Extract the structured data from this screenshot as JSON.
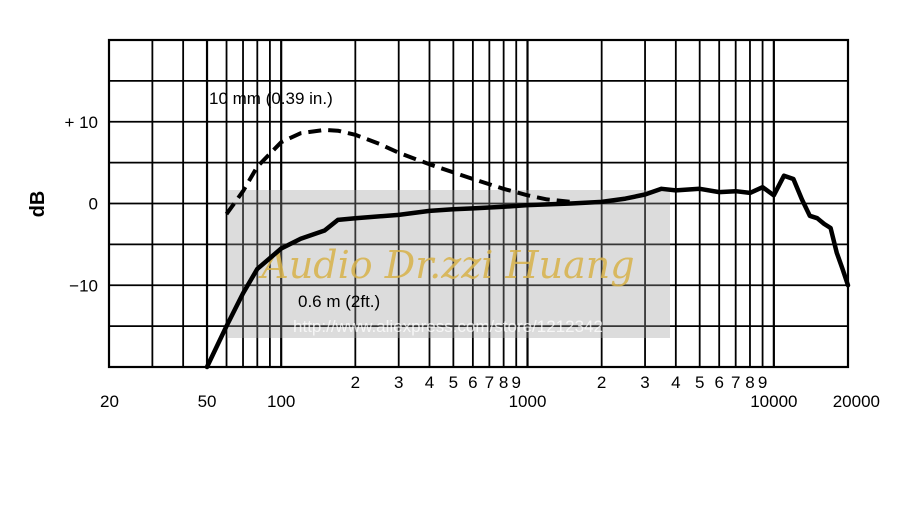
{
  "chart_data": {
    "type": "line",
    "ylabel": "dB",
    "xscale": "log",
    "xlim": [
      20,
      20000
    ],
    "ylim": [
      -20,
      20
    ],
    "grid": true,
    "x_major_ticks": [
      20,
      50,
      100,
      1000,
      10000,
      20000
    ],
    "x_major_tick_labels": [
      "20",
      "50",
      "100",
      "1000",
      "10000",
      "20000"
    ],
    "x_minor_tick_labels": [
      {
        "value": 200,
        "label": "2"
      },
      {
        "value": 300,
        "label": "3"
      },
      {
        "value": 400,
        "label": "4"
      },
      {
        "value": 500,
        "label": "5"
      },
      {
        "value": 600,
        "label": "6"
      },
      {
        "value": 700,
        "label": "7"
      },
      {
        "value": 800,
        "label": "8"
      },
      {
        "value": 900,
        "label": "9"
      },
      {
        "value": 2000,
        "label": "2"
      },
      {
        "value": 3000,
        "label": "3"
      },
      {
        "value": 4000,
        "label": "4"
      },
      {
        "value": 5000,
        "label": "5"
      },
      {
        "value": 6000,
        "label": "6"
      },
      {
        "value": 7000,
        "label": "7"
      },
      {
        "value": 8000,
        "label": "8"
      },
      {
        "value": 9000,
        "label": "9"
      }
    ],
    "y_ticks": [
      10,
      0,
      -10
    ],
    "y_tick_labels": [
      "+ 10",
      "0",
      "−10"
    ],
    "annotations": [
      "10 mm (0.39 in.)",
      "0.6 m (2ft.)"
    ],
    "series": [
      {
        "label_ref": "10 mm (0.39 in.)",
        "style": "dashed",
        "x": [
          60,
          70,
          80,
          100,
          120,
          150,
          170,
          200,
          250,
          300,
          400,
          500,
          600,
          800,
          1000,
          1200,
          1500
        ],
        "y": [
          -1.3,
          1.5,
          4.5,
          7.5,
          8.6,
          9.0,
          8.9,
          8.4,
          7.3,
          6.2,
          4.8,
          3.8,
          3.0,
          1.8,
          1.0,
          0.5,
          0.2
        ]
      },
      {
        "label_ref": "0.6 m (2ft.)",
        "style": "solid",
        "x": [
          50,
          60,
          70,
          80,
          100,
          120,
          150,
          170,
          200,
          300,
          400,
          500,
          600,
          800,
          1000,
          1500,
          2000,
          2500,
          3000,
          3500,
          4000,
          5000,
          6000,
          7000,
          8000,
          9000,
          10000,
          11000,
          12000,
          13000,
          14000,
          15000,
          16000,
          17000,
          18000,
          19000,
          20000
        ],
        "y": [
          -20,
          -15,
          -11,
          -8,
          -5.5,
          -4.3,
          -3.3,
          -2,
          -1.8,
          -1.4,
          -0.9,
          -0.7,
          -0.6,
          -0.4,
          -0.2,
          0,
          0.2,
          0.6,
          1.1,
          1.8,
          1.6,
          1.8,
          1.4,
          1.5,
          1.3,
          2.0,
          1.0,
          3.4,
          3.0,
          0.5,
          -1.5,
          -1.8,
          -2.5,
          -3.0,
          -6.0,
          -8.0,
          -10.0
        ]
      }
    ]
  },
  "watermark": {
    "line1": "Audio Dr.zzi Huang",
    "line2": "http://www.aliexpress.com/store/1212342"
  }
}
